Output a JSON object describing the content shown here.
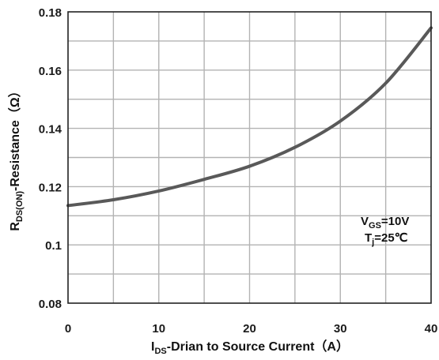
{
  "chart_data": {
    "type": "line",
    "x_ticks": [
      "0",
      "10",
      "20",
      "30",
      "40"
    ],
    "y_ticks": [
      "0.08",
      "0.1",
      "0.12",
      "0.14",
      "0.16",
      "0.18"
    ],
    "xlim": [
      0,
      40
    ],
    "ylim": [
      0.08,
      0.18
    ],
    "grid": true,
    "x_minor_step": 5,
    "y_minor_step": 0.01,
    "xlabel": {
      "main": "I",
      "sub": "DS",
      "rest": "-Drian to Source  Current（A）"
    },
    "ylabel": {
      "main": "R",
      "sub": "DS(ON)",
      "rest": "-Resistance（Ω）"
    },
    "annotations": [
      {
        "main": "V",
        "sub": "GS",
        "rest": "=10V"
      },
      {
        "main": "T",
        "sub": "j",
        "rest": "=25℃"
      }
    ],
    "series": [
      {
        "color": "#595959",
        "x": [
          0,
          5,
          10,
          15,
          20,
          25,
          30,
          35,
          40
        ],
        "y": [
          0.1135,
          0.1155,
          0.1185,
          0.1225,
          0.127,
          0.1335,
          0.1425,
          0.1555,
          0.1745
        ]
      }
    ]
  }
}
